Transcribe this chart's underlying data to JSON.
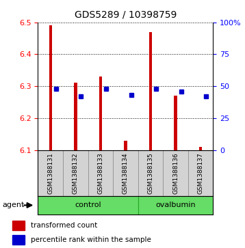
{
  "title": "GDS5289 / 10398759",
  "samples": [
    "GSM1388131",
    "GSM1388132",
    "GSM1388133",
    "GSM1388134",
    "GSM1388135",
    "GSM1388136",
    "GSM1388137"
  ],
  "red_values": [
    6.49,
    6.31,
    6.33,
    6.13,
    6.47,
    6.27,
    6.11
  ],
  "blue_percentiles": [
    48,
    42,
    48,
    43,
    48,
    46,
    42
  ],
  "ylim_left": [
    6.1,
    6.5
  ],
  "ylim_right": [
    0,
    100
  ],
  "yticks_left": [
    6.1,
    6.2,
    6.3,
    6.4,
    6.5
  ],
  "yticks_right": [
    0,
    25,
    50,
    75,
    100
  ],
  "ytick_labels_right": [
    "0",
    "25",
    "50",
    "75",
    "100%"
  ],
  "base_value": 6.1,
  "bar_color": "#CC0000",
  "dot_color": "#0000CC",
  "bg_color": "#D3D3D3",
  "plot_bg": "#FFFFFF",
  "green_color": "#66DD66",
  "legend_red": "transformed count",
  "legend_blue": "percentile rank within the sample"
}
